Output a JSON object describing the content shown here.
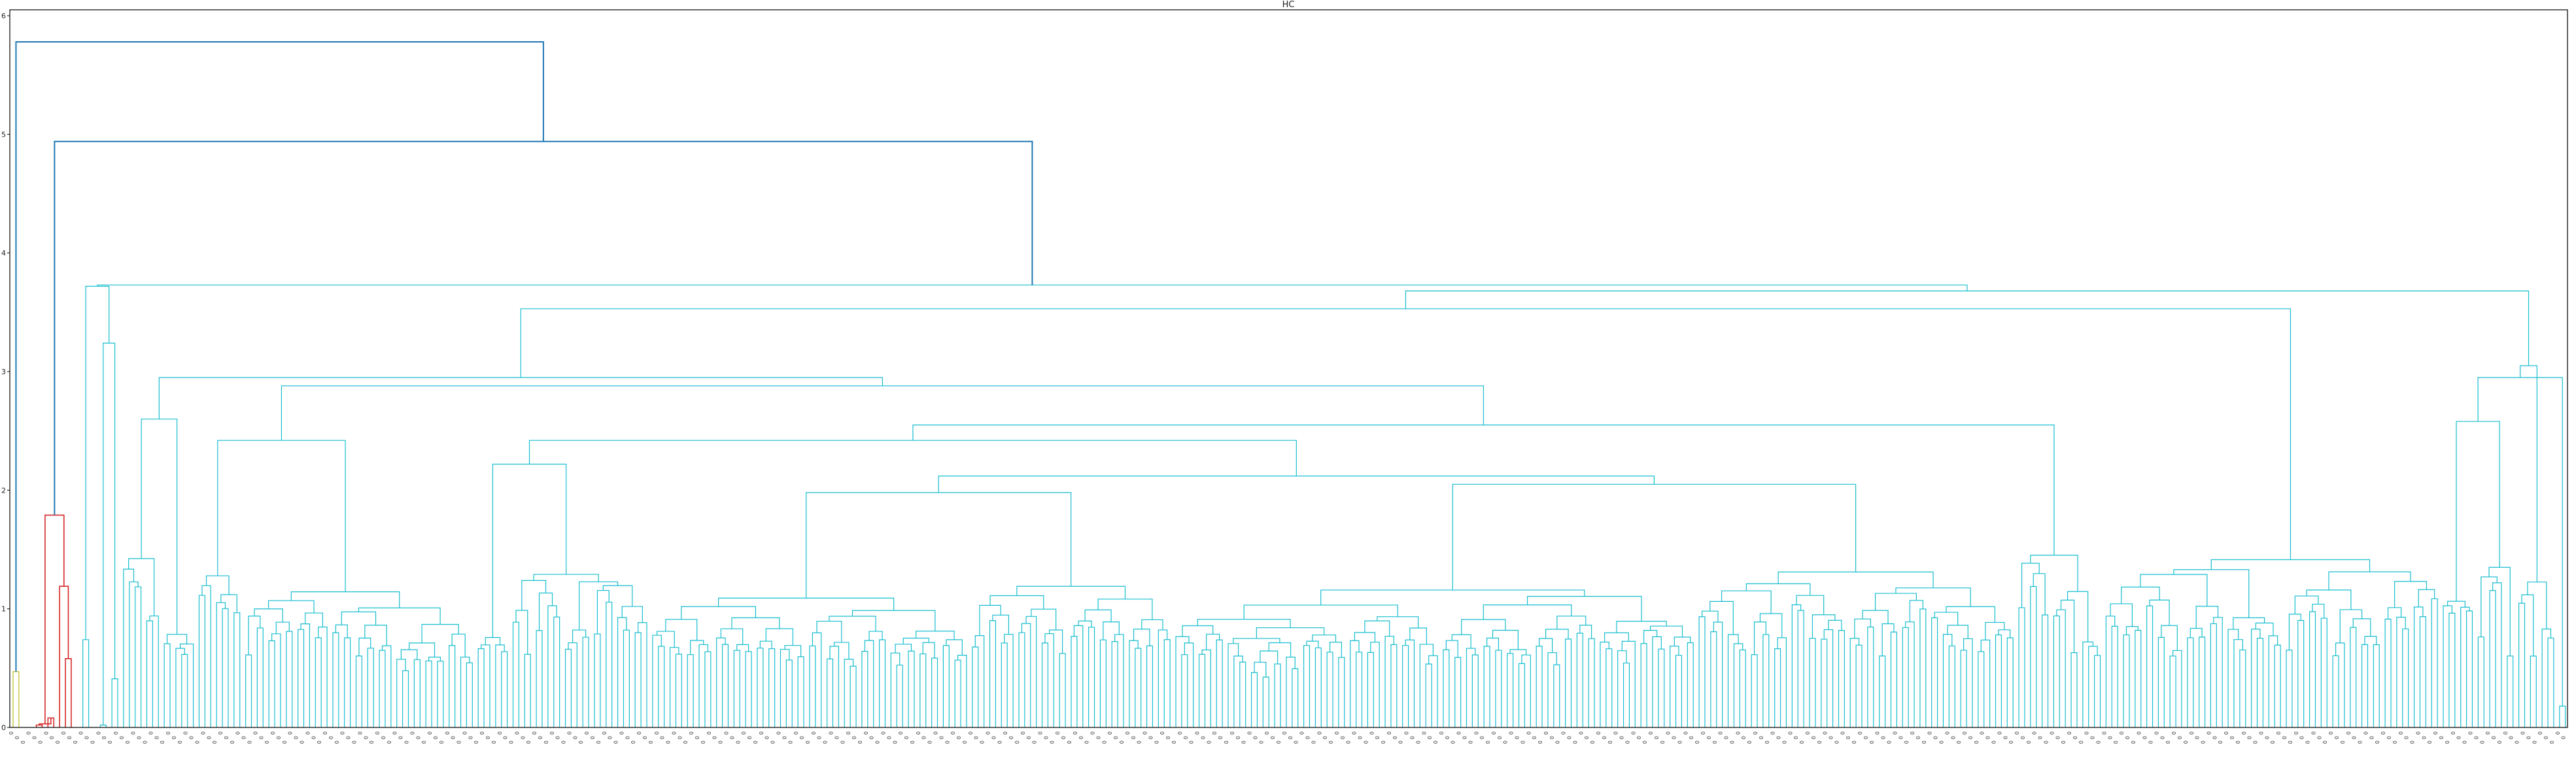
{
  "chart_data": {
    "type": "dendrogram",
    "title": "HC",
    "xlabel": "",
    "ylabel": "",
    "ylim": [
      0,
      6.05
    ],
    "y_ticks": [
      0,
      1,
      2,
      3,
      4,
      5,
      6
    ],
    "grid": false,
    "legend": "none",
    "leaf_count": 440,
    "leaf_label_char": "0",
    "colors": {
      "top_links": "#1f77b4",
      "cluster_olive": "#bcbd22",
      "cluster_red": "#d62728",
      "cluster_cyan": "#17becf"
    },
    "merges": [
      {
        "height": 5.78,
        "between": "cluster_olive + rest"
      },
      {
        "height": 4.94,
        "between": "cluster_red + cluster_cyan"
      },
      {
        "height": 1.79,
        "between": "cluster_red internal"
      },
      {
        "height": 3.73,
        "between": "cluster_cyan root"
      },
      {
        "height": 3.68,
        "between": "cyan main block"
      },
      {
        "height": 3.53,
        "between": "cyan large subtree"
      },
      {
        "height": 3.05,
        "between": "cyan right block"
      },
      {
        "height": 0.47,
        "between": "cluster_olive internal"
      }
    ]
  }
}
